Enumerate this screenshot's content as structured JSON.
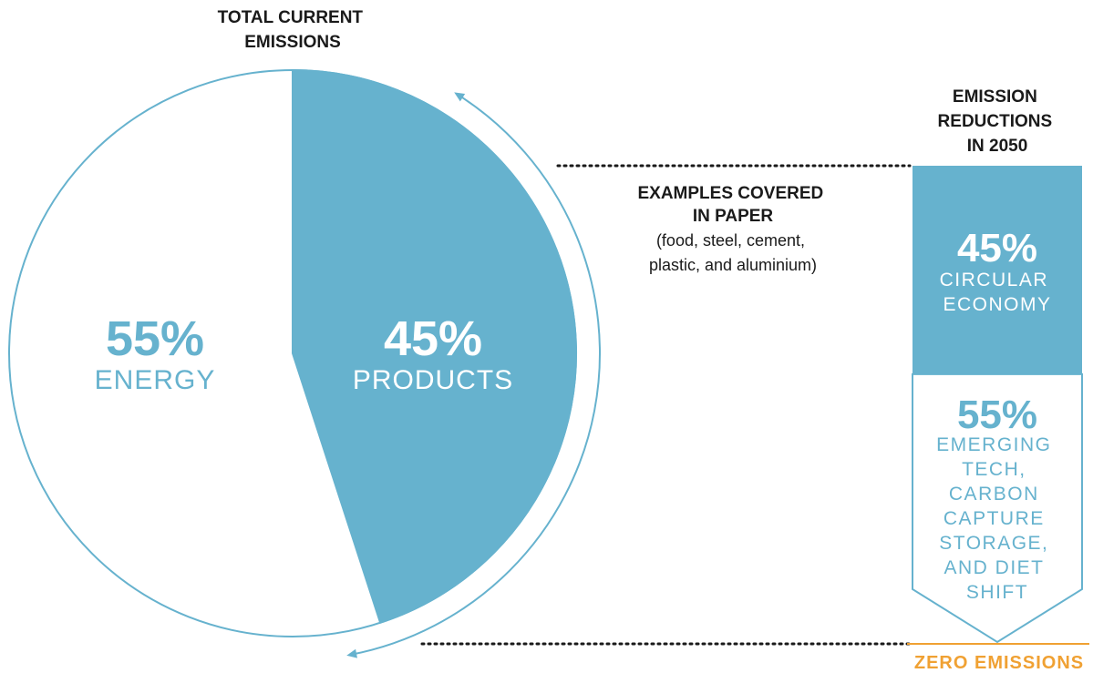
{
  "colors": {
    "accent": "#66b2ce",
    "white": "#ffffff",
    "text": "#1a1a1a",
    "zero": "#f0a133"
  },
  "pie": {
    "title_lines": [
      "TOTAL CURRENT",
      "EMISSIONS"
    ],
    "energy": {
      "pct": "55%",
      "label": "ENERGY"
    },
    "products": {
      "pct": "45%",
      "label": "PRODUCTS"
    }
  },
  "examples": {
    "bold_lines": [
      "EXAMPLES COVERED",
      "IN PAPER"
    ],
    "lines": [
      "(food, steel, cement,",
      "plastic, and aluminium)"
    ]
  },
  "reductions": {
    "title_lines": [
      "EMISSION",
      "REDUCTIONS",
      "IN 2050"
    ],
    "circular": {
      "pct": "45%",
      "label_lines": [
        "CIRCULAR",
        "ECONOMY"
      ]
    },
    "emerging": {
      "pct": "55%",
      "label_lines": [
        "EMERGING",
        "TECH,",
        "CARBON",
        "CAPTURE",
        "STORAGE,",
        "AND DIET",
        "SHIFT"
      ]
    },
    "zero_label": "ZERO EMISSIONS"
  },
  "chart_data": [
    {
      "type": "pie",
      "title": "TOTAL CURRENT EMISSIONS",
      "categories": [
        "ENERGY",
        "PRODUCTS"
      ],
      "values": [
        55,
        45
      ]
    },
    {
      "type": "bar",
      "title": "EMISSION REDUCTIONS IN 2050",
      "categories": [
        "CIRCULAR ECONOMY",
        "EMERGING TECH, CARBON CAPTURE STORAGE, AND DIET SHIFT"
      ],
      "values": [
        45,
        55
      ],
      "stacked": true
    }
  ]
}
